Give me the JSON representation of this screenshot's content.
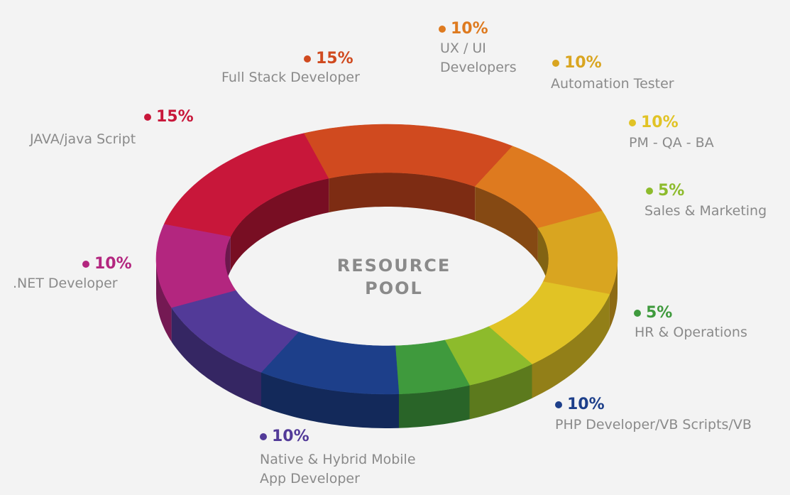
{
  "chart_data": {
    "type": "donut",
    "title": "RESOURCE POOL",
    "categories": [
      "JAVA/java Script",
      "Full Stack Developer",
      "UX / UI Developers",
      "Automation Tester",
      "PM - QA - BA",
      "Sales & Marketing",
      "HR & Operations",
      "PHP Developer/VB Scripts/VB",
      "Native & Hybrid Mobile App Developer",
      ".NET Developer"
    ],
    "values": [
      15,
      15,
      10,
      10,
      10,
      5,
      5,
      10,
      10,
      10
    ],
    "value_labels": [
      "15%",
      "15%",
      "10%",
      "10%",
      "10%",
      "5%",
      "5%",
      "10%",
      "10%",
      "10%"
    ],
    "colors": [
      "#c8173a",
      "#d04a1f",
      "#de7a1f",
      "#d9a520",
      "#e1c325",
      "#8dbb2c",
      "#3f9a3d",
      "#1d3f8a",
      "#523a98",
      "#b3267f"
    ]
  }
}
